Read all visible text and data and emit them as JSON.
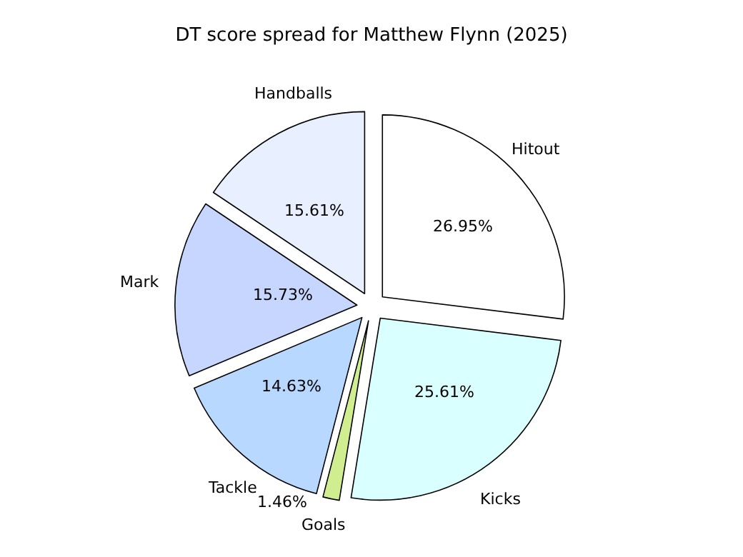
{
  "chart_data": {
    "type": "pie",
    "title": "DT score spread for Matthew Flynn (2025)",
    "categories": [
      "Hitout",
      "Kicks",
      "Goals",
      "Tackle",
      "Mark",
      "Handballs"
    ],
    "values": [
      26.95,
      25.61,
      1.46,
      14.63,
      15.73,
      15.61
    ],
    "value_labels": [
      "26.95%",
      "25.61%",
      "1.46%",
      "14.63%",
      "15.73%",
      "15.61%"
    ],
    "colors": [
      "#ffffff",
      "#d9ffff",
      "#d0ee90",
      "#b8d8ff",
      "#c6d6ff",
      "#e8f0ff"
    ],
    "legend": false
  }
}
